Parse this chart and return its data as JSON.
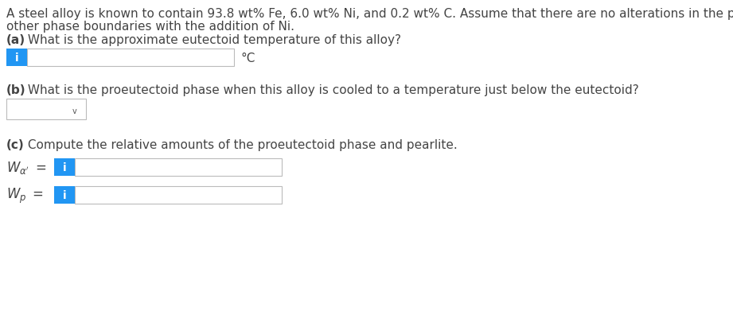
{
  "background_color": "#ffffff",
  "text_color": "#444444",
  "title_line1": "A steel alloy is known to contain 93.8 wt% Fe, 6.0 wt% Ni, and 0.2 wt% C. Assume that there are no alterations in the positions of",
  "title_line2": "other phase boundaries with the addition of Ni.",
  "part_a_bold": "(a)",
  "part_a_rest": " What is the approximate eutectoid temperature of this alloy?",
  "part_a_unit": "°C",
  "part_b_bold": "(b)",
  "part_b_rest": " What is the proeutectoid phase when this alloy is cooled to a temperature just below the eutectoid?",
  "part_c_bold": "(c)",
  "part_c_rest": " Compute the relative amounts of the proeutectoid phase and pearlite.",
  "info_button_color": "#2196F3",
  "info_button_text": "i",
  "info_button_text_color": "#ffffff",
  "input_box_border_color": "#bbbbbb",
  "input_box_fill_color": "#ffffff",
  "dropdown_border_color": "#bbbbbb",
  "font_size": 11,
  "chevron_char": "⌄",
  "wa_label_bold": "$W_{\\alpha'}$",
  "wp_label_bold": "$W_{p}$"
}
